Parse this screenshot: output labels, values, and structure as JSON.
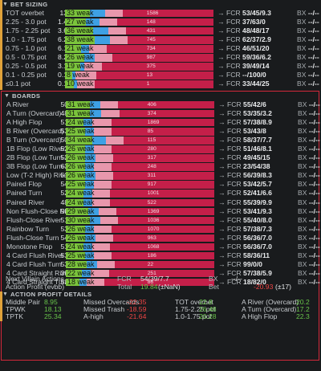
{
  "bet_sizing": {
    "header": "BET SIZING",
    "rows": [
      {
        "label": "TOT overbet",
        "count": "13",
        "pct": 33,
        "bar_text": "33 weak",
        "g": 0.17,
        "b": 0.1,
        "p": 0.12,
        "n": "1586",
        "fcr": "53/45/9.3",
        "bx": "--/--"
      },
      {
        "label": "2.25 - 3.0 pot",
        "count": "1.4",
        "pct": 27,
        "bar_text": "27 weak",
        "g": 0.14,
        "b": 0.09,
        "p": 0.12,
        "n": "148",
        "fcr": "37/63/0",
        "bx": "--/--"
      },
      {
        "label": "1.75 - 2.25 pot",
        "count": "3.6",
        "pct": 36,
        "bar_text": "36 weak",
        "g": 0.19,
        "b": 0.1,
        "p": 0.12,
        "n": "431",
        "fcr": "48/48/17",
        "bx": "--/--"
      },
      {
        "label": "1.0 - 1.75 pot",
        "count": "6.2",
        "pct": 38,
        "bar_text": "38 weak",
        "g": 0.2,
        "b": 0.1,
        "p": 0.12,
        "n": "745",
        "fcr": "62/37/2.9",
        "bx": "--/--"
      },
      {
        "label": "0.75 - 1.0 pot",
        "count": "6.1",
        "pct": 21,
        "bar_text": "21 weak",
        "g": 0.11,
        "b": 0.05,
        "p": 0.12,
        "n": "734",
        "fcr": "46/51/20",
        "bx": "--/--"
      },
      {
        "label": "0.5 - 0.75 pot",
        "count": "8.2",
        "pct": 26,
        "bar_text": "26 weak",
        "g": 0.13,
        "b": 0.07,
        "p": 0.12,
        "n": "987",
        "fcr": "59/36/6.2",
        "bx": "--/--"
      },
      {
        "label": "0.25 - 0.5 pot",
        "count": "3.1",
        "pct": 19,
        "bar_text": "19 weak",
        "g": 0.1,
        "b": 0.03,
        "p": 0.12,
        "n": "375",
        "fcr": "39/49/14",
        "bx": "--/--"
      },
      {
        "label": "0.1 - 0.25 pot",
        "count": "0.1",
        "pct": 8,
        "bar_text": "8 weak",
        "g": 0.05,
        "b": 0.02,
        "p": 0.14,
        "n": "13",
        "fcr": "--/100/0",
        "bx": "--/--"
      },
      {
        "label": "≤0.1 pot",
        "count": "0.1",
        "pct": 10,
        "bar_text": "10 weak",
        "g": 0.06,
        "b": 0.02,
        "p": 0.12,
        "n": "1",
        "fcr": "33/44/25",
        "bx": "--/--"
      }
    ]
  },
  "boards": {
    "header": "BOARDS",
    "rows": [
      {
        "label": "A River",
        "count": "50",
        "small": "6086",
        "bar_text": "31 weak",
        "g": 0.16,
        "b": 0.07,
        "p": 0.12,
        "n": "406",
        "fcr": "55/42/6",
        "bx": "--/--"
      },
      {
        "label": "A Turn (Overcard)",
        "count": "48",
        "small": "4273",
        "bar_text": "31 weak",
        "g": 0.16,
        "b": 0.08,
        "p": 0.12,
        "n": "374",
        "fcr": "53/35/3.2",
        "bx": "--/--"
      },
      {
        "label": "A High Flop",
        "count": "51",
        "small": "3600",
        "bar_text": "24 weak",
        "g": 0.12,
        "b": 0.06,
        "p": 0.13,
        "n": "1869",
        "fcr": "57/38/8.9",
        "bx": "--/--"
      },
      {
        "label": "B River (Overcard)",
        "count": "53",
        "small": "",
        "bar_text": "25 weak",
        "g": 0.13,
        "b": 0.06,
        "p": 0.12,
        "n": "85",
        "fcr": "53/43/8",
        "bx": "--/--"
      },
      {
        "label": "B Turn (Overcard)",
        "count": "50",
        "small": "",
        "bar_text": "34 weak",
        "g": 0.18,
        "b": 0.09,
        "p": 0.12,
        "n": "115",
        "fcr": "58/37/7.7",
        "bx": "--/--"
      },
      {
        "label": "1B Flop (Low River)",
        "count": "52",
        "small": "3360",
        "bar_text": "26 weak",
        "g": 0.13,
        "b": 0.06,
        "p": 0.12,
        "n": "280",
        "fcr": "51/46/8.1",
        "bx": "--/--"
      },
      {
        "label": "2B Flop (Low Turn-River)",
        "count": "52",
        "small": "",
        "bar_text": "26 weak",
        "g": 0.13,
        "b": 0.07,
        "p": 0.12,
        "n": "317",
        "fcr": "49/45/15",
        "bx": "--/--"
      },
      {
        "label": "3B Flop (Low Turn-River)",
        "count": "63",
        "small": "2767",
        "bar_text": "26 weak",
        "g": 0.13,
        "b": 0.06,
        "p": 0.12,
        "n": "248",
        "fcr": "23/54/38",
        "bx": "--/--"
      },
      {
        "label": "Low (T-2 High) River",
        "count": "51",
        "small": "",
        "bar_text": "26 weak",
        "g": 0.13,
        "b": 0.07,
        "p": 0.12,
        "n": "311",
        "fcr": "56/39/8.3",
        "bx": "--/--"
      },
      {
        "label": "Paired Flop",
        "count": "54",
        "small": "",
        "bar_text": "25 weak",
        "g": 0.13,
        "b": 0.06,
        "p": 0.12,
        "n": "917",
        "fcr": "53/42/5.7",
        "bx": "--/--"
      },
      {
        "label": "Paired Turn",
        "count": "52",
        "small": "",
        "bar_text": "24 weak",
        "g": 0.12,
        "b": 0.06,
        "p": 0.12,
        "n": "1001",
        "fcr": "52/41/6.6",
        "bx": "--/--"
      },
      {
        "label": "Paired River",
        "count": "48",
        "small": "",
        "bar_text": "24 weak",
        "g": 0.12,
        "b": 0.06,
        "p": 0.12,
        "n": "522",
        "fcr": "55/39/9.9",
        "bx": "--/--"
      },
      {
        "label": "Non Flush-Close River",
        "count": "50",
        "small": "",
        "bar_text": "29 weak",
        "g": 0.15,
        "b": 0.07,
        "p": 0.12,
        "n": "1369",
        "fcr": "53/41/9.3",
        "bx": "--/--"
      },
      {
        "label": "Flush-Close River",
        "count": "51",
        "small": "",
        "bar_text": "30 weak",
        "g": 0.16,
        "b": 0.07,
        "p": 0.12,
        "n": "1036",
        "fcr": "55/40/8.0",
        "bx": "--/--"
      },
      {
        "label": "Rainbow Turn",
        "count": "53",
        "small": "",
        "bar_text": "26 weak",
        "g": 0.13,
        "b": 0.06,
        "p": 0.12,
        "n": "1070",
        "fcr": "57/38/7.3",
        "bx": "--/--"
      },
      {
        "label": "Flush-Close Turn",
        "count": "54",
        "small": "",
        "bar_text": "26 weak",
        "g": 0.13,
        "b": 0.07,
        "p": 0.12,
        "n": "963",
        "fcr": "56/36/7.0",
        "bx": "--/--"
      },
      {
        "label": "Monotone Flop",
        "count": "51",
        "small": "",
        "bar_text": "24 weak",
        "g": 0.12,
        "b": 0.06,
        "p": 0.12,
        "n": "1068",
        "fcr": "56/36/7.0",
        "bx": "--/--"
      },
      {
        "label": "4 Card Flush River",
        "count": "53",
        "small": "",
        "bar_text": "25 weak",
        "g": 0.13,
        "b": 0.06,
        "p": 0.12,
        "n": "186",
        "fcr": "58/36/11",
        "bx": "--/--"
      },
      {
        "label": "4 Card Flush Turn",
        "count": "53",
        "small": "",
        "bar_text": "28 weak",
        "g": 0.14,
        "b": 0.07,
        "p": 0.12,
        "n": "22",
        "fcr": "99/0/0",
        "bx": "--/--"
      },
      {
        "label": "4 Card Straight River",
        "count": "39",
        "small": "",
        "bar_text": "22 weak",
        "g": 0.11,
        "b": 0.06,
        "p": 0.12,
        "n": "251",
        "fcr": "57/38/5.9",
        "bx": "--/--"
      },
      {
        "label": "4 Card Straight Turn",
        "count": "53",
        "small": "",
        "bar_text": "18 weak",
        "g": 0.09,
        "b": 0.05,
        "p": 0.12,
        "n": "86",
        "fcr": "18/82/0",
        "bx": "--/--"
      }
    ]
  },
  "summary": {
    "row1": {
      "label": "Next Villain Actions",
      "fcr_label": "FCR",
      "fcr_val": "54/39/7.7",
      "bx_label": "BX",
      "bx_val": "--/--"
    },
    "row2": {
      "label": "Action Profit (evbb)",
      "total_label": "Total",
      "total_val": "19.84",
      "total_sub": "(±NaN)",
      "bet_label": "Bet",
      "bet_val": "-20.93",
      "bet_sub": "(±17)"
    }
  },
  "action_profit": {
    "header": "ACTION PROFIT DETAILS",
    "rows": [
      [
        {
          "l": "Middle Pair",
          "v": "8.95",
          "c": "pos"
        },
        {
          "l": "Missed Overcards",
          "v": "-22.35",
          "c": "neg"
        },
        {
          "l": "TOT overbet",
          "v": "22.8",
          "c": "pos"
        },
        {
          "l": "A River (Overcard)",
          "v": "20.2",
          "c": "pos"
        }
      ],
      [
        {
          "l": "TPWK",
          "v": "18.13",
          "c": "pos"
        },
        {
          "l": "Missed Trash",
          "v": "-18.59",
          "c": "neg"
        },
        {
          "l": "1.75-2.25 pot",
          "v": "26.48",
          "c": "pos"
        },
        {
          "l": "A Turn (Overcard)",
          "v": "17.2",
          "c": "pos"
        }
      ],
      [
        {
          "l": "TPTK",
          "v": "25.34",
          "c": "pos"
        },
        {
          "l": "A-high",
          "v": "-21.64",
          "c": "neg"
        },
        {
          "l": "1.0-1.75 pot",
          "v": "20.28",
          "c": "pos"
        },
        {
          "l": "A High Flop",
          "v": "22.3",
          "c": "pos"
        }
      ]
    ]
  },
  "colors": {
    "green": "#7bc43c",
    "blue": "#3ea0e4",
    "pink": "#e897ac",
    "red": "#c41f49",
    "border": "#d3283a"
  },
  "icons": {
    "collapse": "triangle-down-icon",
    "arrow": "arrow-right-icon"
  }
}
